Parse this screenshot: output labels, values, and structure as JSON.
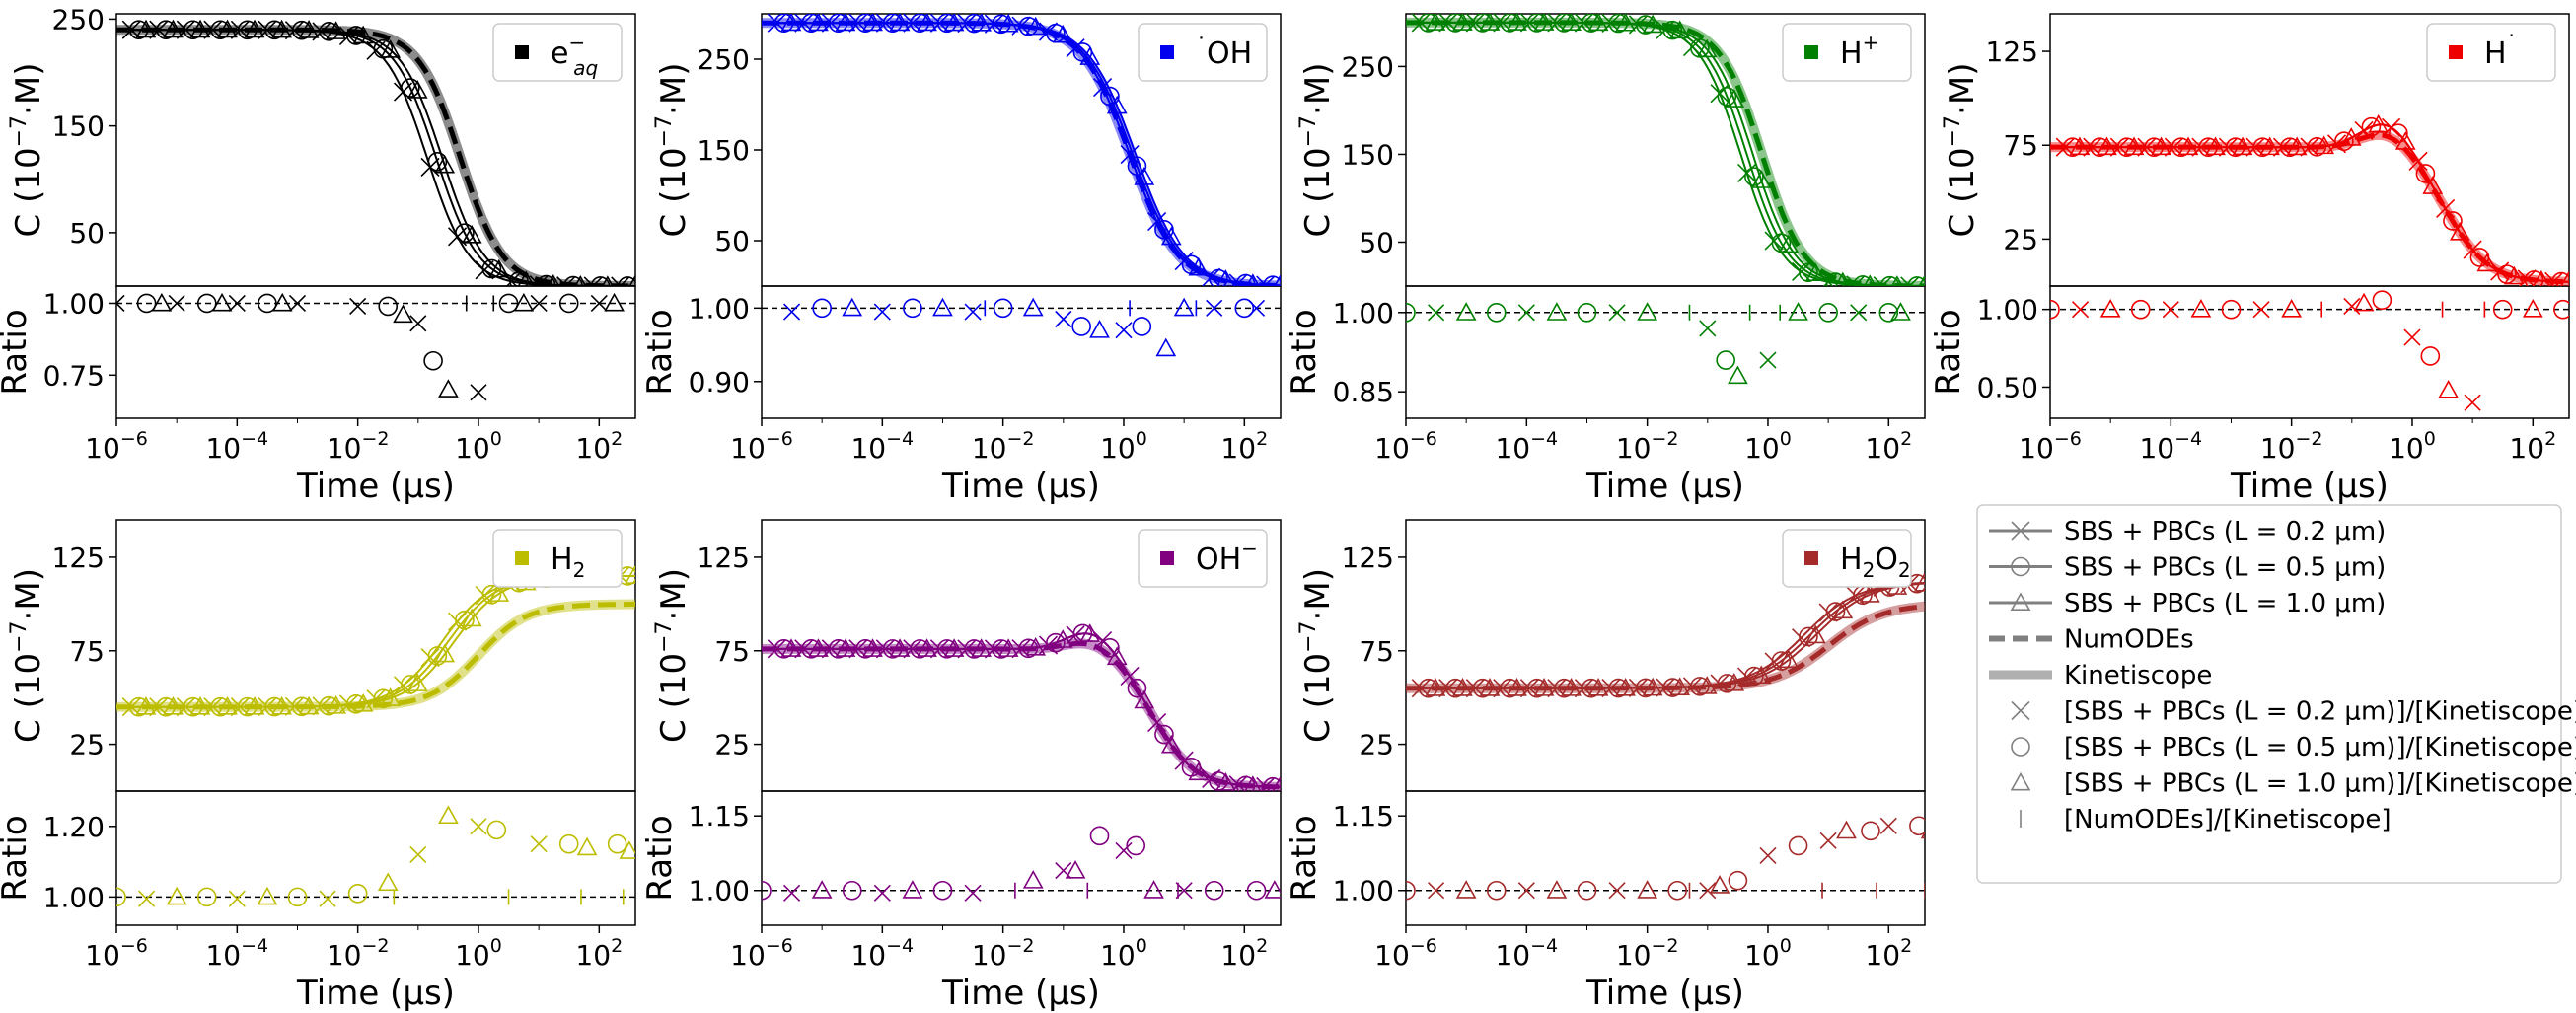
{
  "figure": {
    "ylabel_main": "C (10",
    "ylabel_exp": "−7",
    "ylabel_tail": "·M)",
    "ylabel_ratio": "Ratio",
    "xlabel": "Time (μs)",
    "x_ticks": [
      {
        "base": "10",
        "exp": "−6"
      },
      {
        "base": "10",
        "exp": "−4"
      },
      {
        "base": "10",
        "exp": "−2"
      },
      {
        "base": "10",
        "exp": "0"
      },
      {
        "base": "10",
        "exp": "2"
      }
    ]
  },
  "legend": {
    "entries": [
      {
        "label": "SBS + PBCs (L = 0.2 μm)",
        "style": "line-x"
      },
      {
        "label": "SBS + PBCs (L = 0.5 μm)",
        "style": "line-o"
      },
      {
        "label": "SBS + PBCs (L = 1.0 μm)",
        "style": "line-tri"
      },
      {
        "label": "NumODEs",
        "style": "dashed"
      },
      {
        "label": "Kinetiscope",
        "style": "thick"
      },
      {
        "label": "[SBS + PBCs (L = 0.2 μm)]/[Kinetiscope]",
        "style": "x"
      },
      {
        "label": "[SBS + PBCs (L = 0.5 μm)]/[Kinetiscope]",
        "style": "o"
      },
      {
        "label": "[SBS + PBCs (L = 1.0 μm)]/[Kinetiscope]",
        "style": "tri"
      },
      {
        "label": "[NumODEs]/[Kinetiscope]",
        "style": "bar"
      }
    ]
  },
  "chart_data": [
    {
      "type": "line",
      "species": "e_aq",
      "legend": {
        "base": "e",
        "sup": "−",
        "sub": "aq"
      },
      "color": "#000000",
      "x_log_range": [
        -6,
        2.6
      ],
      "ylim": [
        0,
        255
      ],
      "yticks": [
        50,
        150,
        250
      ],
      "ratio_ylim": [
        0.6,
        1.06
      ],
      "ratio_yticks": [
        "0.75",
        "1.00"
      ],
      "kinetics": {
        "kind": "sigmoid",
        "y0": 240,
        "y1": 0,
        "center_log": -0.3,
        "width": 0.35
      },
      "sim_variation": {
        "c_shift": [
          -0.55,
          -0.4,
          -0.3
        ],
        "bump": 0
      },
      "ratio_points": {
        "x_markers": [
          {
            "x": -6,
            "y": 1.0
          },
          {
            "x": -5,
            "y": 1.0
          },
          {
            "x": -4,
            "y": 1.0
          },
          {
            "x": -3,
            "y": 1.0
          },
          {
            "x": -2,
            "y": 0.99
          },
          {
            "x": -1,
            "y": 0.93
          },
          {
            "x": 0,
            "y": 0.69
          },
          {
            "x": 1,
            "y": 1.0
          },
          {
            "x": 2,
            "y": 1.0
          }
        ],
        "o_markers": [
          {
            "x": -5.5,
            "y": 1.0
          },
          {
            "x": -4.5,
            "y": 1.0
          },
          {
            "x": -3.5,
            "y": 1.0
          },
          {
            "x": -1.5,
            "y": 0.99
          },
          {
            "x": -0.75,
            "y": 0.8
          },
          {
            "x": 0.5,
            "y": 1.0
          },
          {
            "x": 1.5,
            "y": 1.0
          }
        ],
        "tri_markers": [
          {
            "x": -5.25,
            "y": 1.0
          },
          {
            "x": -4.25,
            "y": 1.0
          },
          {
            "x": -3.25,
            "y": 1.0
          },
          {
            "x": -1.25,
            "y": 0.96
          },
          {
            "x": -0.5,
            "y": 0.7
          },
          {
            "x": 0.75,
            "y": 1.0
          },
          {
            "x": 2.25,
            "y": 1.0
          }
        ],
        "bar_markers": [
          {
            "x": -0.2,
            "y": 1.0
          },
          {
            "x": 0.25,
            "y": 1.0
          }
        ]
      }
    },
    {
      "type": "line",
      "species": "OH",
      "legend": {
        "base": "OH",
        "pre": "˙"
      },
      "color": "#0000ee",
      "x_log_range": [
        -6,
        2.6
      ],
      "ylim": [
        0,
        300
      ],
      "yticks": [
        50,
        150,
        250
      ],
      "ratio_ylim": [
        0.85,
        1.03
      ],
      "ratio_yticks": [
        "0.90",
        "1.00"
      ],
      "kinetics": {
        "kind": "sigmoid",
        "y0": 290,
        "y1": 0,
        "center_log": 0.1,
        "width": 0.4
      },
      "sim_variation": {
        "c_shift": [
          0.0,
          0.05,
          0.1
        ],
        "bump": 0
      },
      "ratio_points": {
        "x_markers": [
          {
            "x": -5.5,
            "y": 0.995
          },
          {
            "x": -4,
            "y": 0.995
          },
          {
            "x": -2.5,
            "y": 0.995
          },
          {
            "x": -1,
            "y": 0.985
          },
          {
            "x": 0,
            "y": 0.97
          },
          {
            "x": 1.5,
            "y": 1.0
          },
          {
            "x": 2.2,
            "y": 1.0
          }
        ],
        "o_markers": [
          {
            "x": -5,
            "y": 1.0
          },
          {
            "x": -3.5,
            "y": 1.0
          },
          {
            "x": -2,
            "y": 1.0
          },
          {
            "x": -0.7,
            "y": 0.975
          },
          {
            "x": 0.3,
            "y": 0.975
          },
          {
            "x": 2,
            "y": 1.0
          }
        ],
        "tri_markers": [
          {
            "x": -4.5,
            "y": 1.0
          },
          {
            "x": -3,
            "y": 1.0
          },
          {
            "x": -1.5,
            "y": 1.0
          },
          {
            "x": -0.4,
            "y": 0.97
          },
          {
            "x": 0.7,
            "y": 0.945
          },
          {
            "x": 1,
            "y": 1.0
          }
        ],
        "bar_markers": [
          {
            "x": -2.3,
            "y": 1.0
          },
          {
            "x": 0.1,
            "y": 1.0
          },
          {
            "x": 1.2,
            "y": 1.0
          }
        ]
      }
    },
    {
      "type": "line",
      "species": "Hplus",
      "legend": {
        "base": "H",
        "sup": "+"
      },
      "color": "#008000",
      "x_log_range": [
        -6,
        2.6
      ],
      "ylim": [
        0,
        310
      ],
      "yticks": [
        50,
        150,
        250
      ],
      "ratio_ylim": [
        0.8,
        1.05
      ],
      "ratio_yticks": [
        "0.85",
        "1.00"
      ],
      "kinetics": {
        "kind": "sigmoid",
        "y0": 300,
        "y1": 0,
        "center_log": -0.1,
        "width": 0.35
      },
      "sim_variation": {
        "c_shift": [
          -0.35,
          -0.25,
          -0.15
        ],
        "bump": 0
      },
      "ratio_points": {
        "x_markers": [
          {
            "x": -5.5,
            "y": 1.0
          },
          {
            "x": -4,
            "y": 1.0
          },
          {
            "x": -2.5,
            "y": 1.0
          },
          {
            "x": -1,
            "y": 0.97
          },
          {
            "x": 0,
            "y": 0.91
          },
          {
            "x": 1.5,
            "y": 1.0
          }
        ],
        "o_markers": [
          {
            "x": -6,
            "y": 1.0
          },
          {
            "x": -4.5,
            "y": 1.0
          },
          {
            "x": -3,
            "y": 1.0
          },
          {
            "x": -0.7,
            "y": 0.91
          },
          {
            "x": 1,
            "y": 1.0
          },
          {
            "x": 2,
            "y": 1.0
          }
        ],
        "tri_markers": [
          {
            "x": -5,
            "y": 1.0
          },
          {
            "x": -3.5,
            "y": 1.0
          },
          {
            "x": -2,
            "y": 1.0
          },
          {
            "x": -0.5,
            "y": 0.88
          },
          {
            "x": 0.5,
            "y": 1.0
          },
          {
            "x": 2.2,
            "y": 1.0
          }
        ],
        "bar_markers": [
          {
            "x": -1.3,
            "y": 1.0
          },
          {
            "x": -0.3,
            "y": 1.0
          },
          {
            "x": 0.2,
            "y": 1.0
          }
        ]
      }
    },
    {
      "type": "line",
      "species": "H",
      "legend": {
        "base": "H",
        "sup": "˙"
      },
      "color": "#ee0000",
      "x_log_range": [
        -6,
        2.6
      ],
      "ylim": [
        0,
        145
      ],
      "yticks": [
        25,
        75,
        125
      ],
      "ratio_ylim": [
        0.3,
        1.15
      ],
      "ratio_yticks": [
        "0.50",
        "1.00"
      ],
      "kinetics": {
        "kind": "bump",
        "y0": 74,
        "peak": 84,
        "peak_log": -0.4,
        "y1": 2,
        "center_log": 0.6,
        "width": 0.35
      },
      "sim_variation": {
        "c_shift": [
          0,
          0,
          0
        ],
        "bump": 6
      },
      "ratio_points": {
        "x_markers": [
          {
            "x": -5.5,
            "y": 1.0
          },
          {
            "x": -4,
            "y": 1.0
          },
          {
            "x": -2.5,
            "y": 1.0
          },
          {
            "x": -1,
            "y": 1.02
          },
          {
            "x": 0,
            "y": 0.82
          },
          {
            "x": 1,
            "y": 0.4
          }
        ],
        "o_markers": [
          {
            "x": -6,
            "y": 1.0
          },
          {
            "x": -4.5,
            "y": 1.0
          },
          {
            "x": -3,
            "y": 1.0
          },
          {
            "x": -0.5,
            "y": 1.06
          },
          {
            "x": 0.3,
            "y": 0.7
          },
          {
            "x": 1.5,
            "y": 1.0
          },
          {
            "x": 2.5,
            "y": 1.0
          }
        ],
        "tri_markers": [
          {
            "x": -5,
            "y": 1.0
          },
          {
            "x": -3.5,
            "y": 1.0
          },
          {
            "x": -2,
            "y": 1.0
          },
          {
            "x": -0.8,
            "y": 1.04
          },
          {
            "x": 0.6,
            "y": 0.48
          },
          {
            "x": 2,
            "y": 1.0
          }
        ],
        "bar_markers": [
          {
            "x": -1.5,
            "y": 1.0
          },
          {
            "x": 0.5,
            "y": 1.0
          },
          {
            "x": 1.2,
            "y": 1.0
          }
        ]
      }
    },
    {
      "type": "line",
      "species": "H2",
      "legend": {
        "base": "H",
        "sub": "2"
      },
      "color": "#bcbd00",
      "x_log_range": [
        -6,
        2.6
      ],
      "ylim": [
        0,
        145
      ],
      "yticks": [
        25,
        75,
        125
      ],
      "ratio_ylim": [
        0.92,
        1.3
      ],
      "ratio_yticks": [
        "1.00",
        "1.20"
      ],
      "kinetics": {
        "kind": "rise",
        "y0": 45,
        "y1": 100,
        "center_log": 0,
        "width": 0.4
      },
      "sim_variation": {
        "c_shift": [
          -0.6,
          -0.5,
          -0.4
        ],
        "bump": 0,
        "y1_sim": 115
      },
      "ratio_points": {
        "x_markers": [
          {
            "x": -5.5,
            "y": 0.995
          },
          {
            "x": -4,
            "y": 0.995
          },
          {
            "x": -2.5,
            "y": 0.995
          },
          {
            "x": -1,
            "y": 1.12
          },
          {
            "x": 0,
            "y": 1.2
          },
          {
            "x": 1,
            "y": 1.15
          }
        ],
        "o_markers": [
          {
            "x": -6,
            "y": 1.0
          },
          {
            "x": -4.5,
            "y": 1.0
          },
          {
            "x": -3,
            "y": 1.0
          },
          {
            "x": -2,
            "y": 1.01
          },
          {
            "x": 0.3,
            "y": 1.19
          },
          {
            "x": 1.5,
            "y": 1.15
          },
          {
            "x": 2.3,
            "y": 1.15
          }
        ],
        "tri_markers": [
          {
            "x": -5,
            "y": 1.0
          },
          {
            "x": -3.5,
            "y": 1.0
          },
          {
            "x": -1.5,
            "y": 1.04
          },
          {
            "x": -0.5,
            "y": 1.23
          },
          {
            "x": 1.8,
            "y": 1.14
          },
          {
            "x": 2.5,
            "y": 1.13
          }
        ],
        "bar_markers": [
          {
            "x": -1.4,
            "y": 1.0
          },
          {
            "x": 0.5,
            "y": 1.0
          },
          {
            "x": 1.7,
            "y": 1.0
          },
          {
            "x": 2.4,
            "y": 1.0
          }
        ]
      }
    },
    {
      "type": "line",
      "species": "OHminus",
      "legend": {
        "base": "OH",
        "sup": "−"
      },
      "color": "#800080",
      "x_log_range": [
        -6,
        2.6
      ],
      "ylim": [
        0,
        145
      ],
      "yticks": [
        25,
        75,
        125
      ],
      "ratio_ylim": [
        0.93,
        1.2
      ],
      "ratio_yticks": [
        "1.00",
        "1.15"
      ],
      "kinetics": {
        "kind": "bump",
        "y0": 76,
        "peak": 82,
        "peak_log": -0.5,
        "y1": 2,
        "center_log": 0.5,
        "width": 0.35
      },
      "sim_variation": {
        "c_shift": [
          0,
          0,
          0
        ],
        "bump": 6
      },
      "ratio_points": {
        "x_markers": [
          {
            "x": -5.5,
            "y": 0.995
          },
          {
            "x": -4,
            "y": 0.995
          },
          {
            "x": -2.5,
            "y": 0.995
          },
          {
            "x": -1,
            "y": 1.04
          },
          {
            "x": 0,
            "y": 1.08
          },
          {
            "x": 1,
            "y": 1.0
          }
        ],
        "o_markers": [
          {
            "x": -6,
            "y": 1.0
          },
          {
            "x": -4.5,
            "y": 1.0
          },
          {
            "x": -3,
            "y": 1.0
          },
          {
            "x": -0.4,
            "y": 1.11
          },
          {
            "x": 0.2,
            "y": 1.09
          },
          {
            "x": 1.5,
            "y": 1.0
          },
          {
            "x": 2.2,
            "y": 1.0
          }
        ],
        "tri_markers": [
          {
            "x": -5,
            "y": 1.0
          },
          {
            "x": -3.5,
            "y": 1.0
          },
          {
            "x": -1.5,
            "y": 1.02
          },
          {
            "x": -0.8,
            "y": 1.04
          },
          {
            "x": 0.5,
            "y": 1.0
          },
          {
            "x": 2.5,
            "y": 1.0
          }
        ],
        "bar_markers": [
          {
            "x": -1.8,
            "y": 1.0
          },
          {
            "x": -0.6,
            "y": 1.0
          },
          {
            "x": 0.9,
            "y": 1.0
          }
        ]
      }
    },
    {
      "type": "line",
      "species": "H2O2",
      "legend": {
        "base": "H",
        "sub": "2",
        "base2": "O",
        "sub2": "2"
      },
      "color": "#a52a2a",
      "x_log_range": [
        -6,
        2.6
      ],
      "ylim": [
        0,
        145
      ],
      "yticks": [
        25,
        75,
        125
      ],
      "ratio_ylim": [
        0.93,
        1.2
      ],
      "ratio_yticks": [
        "1.00",
        "1.15"
      ],
      "kinetics": {
        "kind": "rise",
        "y0": 55,
        "y1": 100,
        "center_log": 1,
        "width": 0.45
      },
      "sim_variation": {
        "c_shift": [
          -0.4,
          -0.3,
          -0.2
        ],
        "bump": 0,
        "y1_sim": 112
      },
      "ratio_points": {
        "x_markers": [
          {
            "x": -5.5,
            "y": 1.0
          },
          {
            "x": -4,
            "y": 1.0
          },
          {
            "x": -2.5,
            "y": 1.0
          },
          {
            "x": -1,
            "y": 1.0
          },
          {
            "x": 0,
            "y": 1.07
          },
          {
            "x": 1,
            "y": 1.1
          },
          {
            "x": 2,
            "y": 1.13
          }
        ],
        "o_markers": [
          {
            "x": -6,
            "y": 1.0
          },
          {
            "x": -4.5,
            "y": 1.0
          },
          {
            "x": -3,
            "y": 1.0
          },
          {
            "x": -1.5,
            "y": 1.0
          },
          {
            "x": -0.5,
            "y": 1.02
          },
          {
            "x": 0.5,
            "y": 1.09
          },
          {
            "x": 1.7,
            "y": 1.12
          },
          {
            "x": 2.5,
            "y": 1.13
          }
        ],
        "tri_markers": [
          {
            "x": -5,
            "y": 1.0
          },
          {
            "x": -3.5,
            "y": 1.0
          },
          {
            "x": -2,
            "y": 1.0
          },
          {
            "x": -0.8,
            "y": 1.01
          },
          {
            "x": 1.3,
            "y": 1.12
          },
          {
            "x": 2.7,
            "y": 1.12
          }
        ],
        "bar_markers": [
          {
            "x": -1.3,
            "y": 1.0
          },
          {
            "x": 0.9,
            "y": 1.0
          },
          {
            "x": 1.8,
            "y": 1.0
          },
          {
            "x": 2.6,
            "y": 1.0
          }
        ]
      }
    }
  ]
}
